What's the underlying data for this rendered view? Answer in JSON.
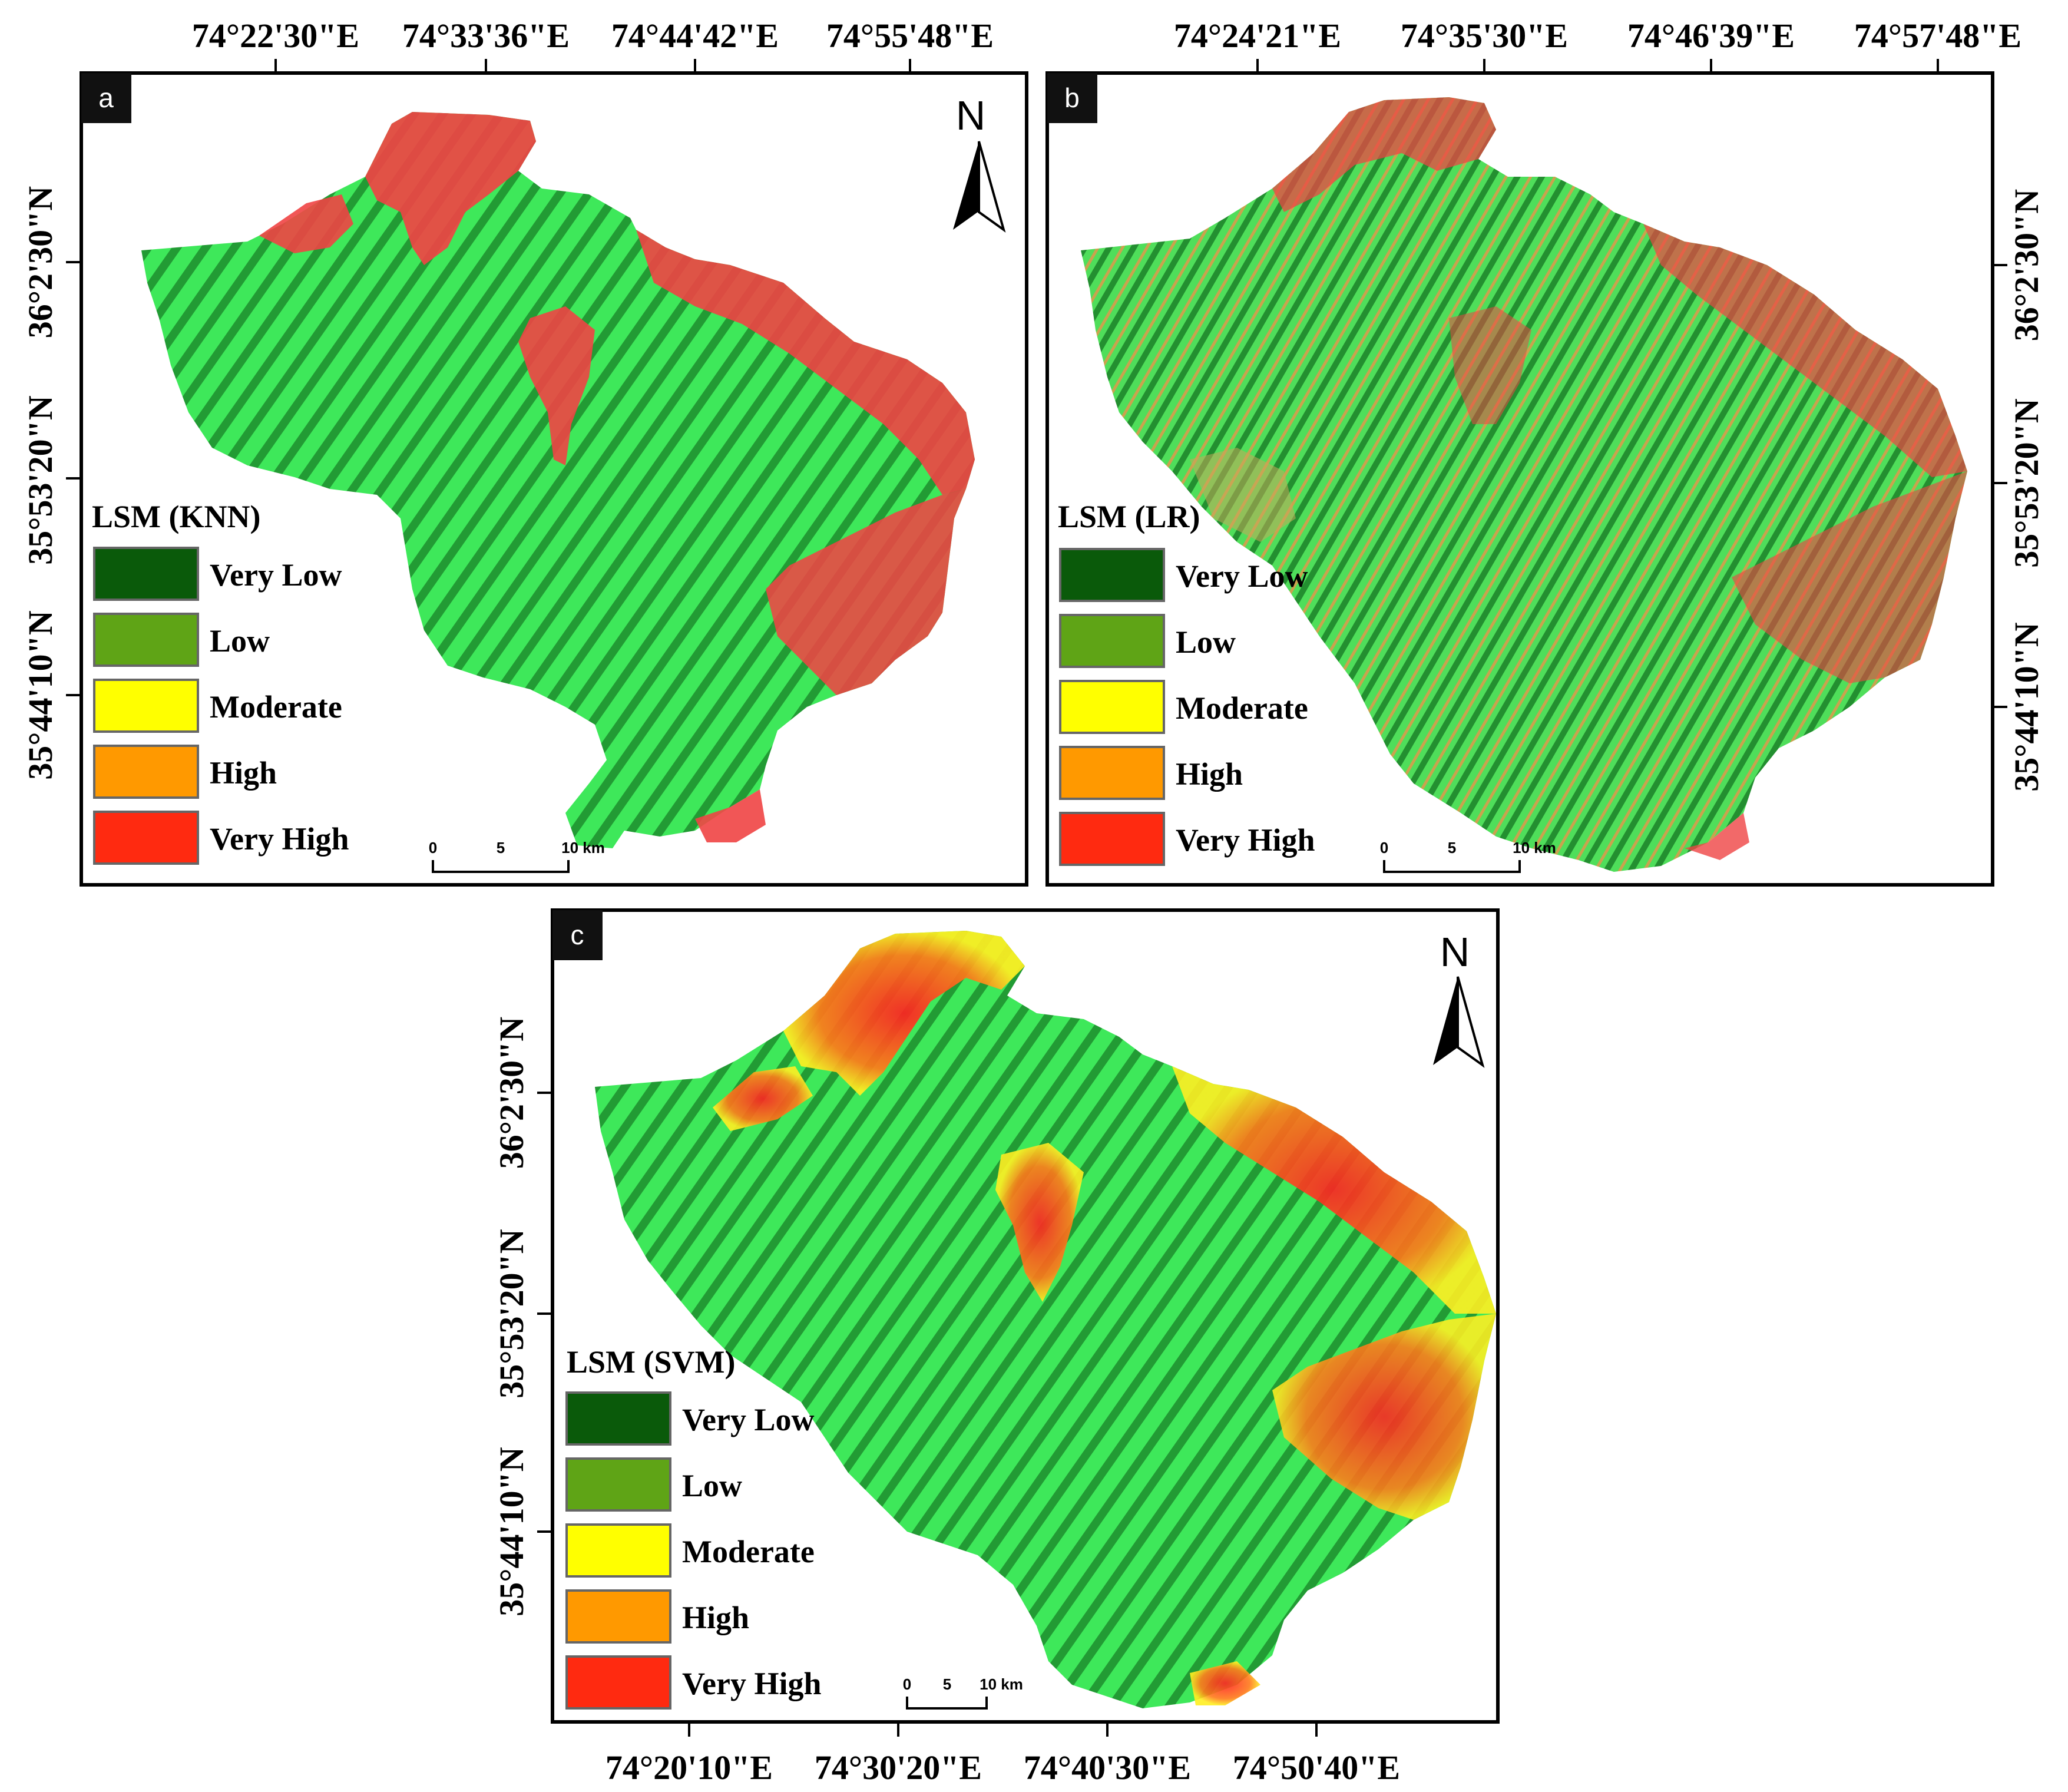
{
  "panels": [
    {
      "id": "a",
      "letter": "a",
      "legend_title": "LSM (KNN)",
      "top_labels": [
        "74°22'30\"E",
        "74°33'36\"E",
        "74°44'42\"E",
        "74°55'48\"E"
      ],
      "left_labels": [
        "36°2'30\"N",
        "35°53'20\"N",
        "35°44'10\"N"
      ],
      "right_labels": [],
      "bottom_labels": [],
      "north": "N",
      "scale": {
        "labels": [
          "0",
          "5",
          "10 km"
        ]
      }
    },
    {
      "id": "b",
      "letter": "b",
      "legend_title": "LSM (LR)",
      "top_labels": [
        "74°24'21\"E",
        "74°35'30\"E",
        "74°46'39\"E",
        "74°57'48\"E"
      ],
      "left_labels": [],
      "right_labels": [
        "36°2'30\"N",
        "35°53'20\"N",
        "35°44'10\"N"
      ],
      "bottom_labels": [],
      "north": "",
      "scale": {
        "labels": [
          "0",
          "5",
          "10 km"
        ]
      }
    },
    {
      "id": "c",
      "letter": "c",
      "legend_title": "LSM (SVM)",
      "top_labels": [],
      "left_labels": [
        "36°2'30\"N",
        "35°53'20\"N",
        "35°44'10\"N"
      ],
      "right_labels": [],
      "bottom_labels": [
        "74°20'10\"E",
        "74°30'20\"E",
        "74°40'30\"E",
        "74°50'40\"E"
      ],
      "north": "N",
      "scale": {
        "labels": [
          "0",
          "5",
          "10 km"
        ]
      }
    }
  ],
  "legend_classes": [
    {
      "label": "Very Low",
      "color": "#0a5a0a"
    },
    {
      "label": "Low",
      "color": "#5fa416"
    },
    {
      "label": "Moderate",
      "color": "#ffff00"
    },
    {
      "label": "High",
      "color": "#ff9900"
    },
    {
      "label": "Very High",
      "color": "#ff2a10"
    }
  ],
  "map_colors": {
    "terrain_light": "#3ee85a",
    "terrain_dark": "#1f8f2c",
    "hazard": "#ef4444",
    "panel_b_tint": "#c8a85a"
  }
}
